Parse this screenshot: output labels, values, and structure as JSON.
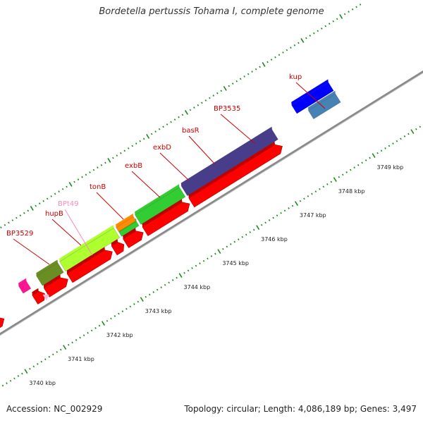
{
  "title": "Bordetella pertussis Tohama I, complete genome",
  "footer": {
    "accession": "Accession: NC_002929",
    "summary": "Topology: circular; Length: 4,086,189 bp; Genes: 3,497"
  },
  "colors": {
    "backbone": "#8a8a8a",
    "cds": "#ff0000",
    "tick": "#1a8a1a",
    "gene_label": "#cc0000",
    "trna_label": "#ff88bb"
  },
  "genes": [
    {
      "name": "BP3529",
      "color": "#4682b4",
      "start": 3738.6,
      "end": 3739.7
    },
    {
      "name": "hupB",
      "color": "#555555",
      "start": 3739.75,
      "end": 3740.2
    },
    {
      "name": "BPt49",
      "color": "#ff1493",
      "start": 3740.85,
      "end": 3741.05,
      "type": "tRNA"
    },
    {
      "name": "tonB",
      "color": "#6b8e23",
      "start": 3741.3,
      "end": 3741.85
    },
    {
      "name": "exbB",
      "color": "#adff2f",
      "start": 3741.9,
      "end": 3743.3
    },
    {
      "name": "exbD",
      "color": "#32cd32",
      "start": 3743.35,
      "end": 3743.8
    },
    {
      "name": "basR",
      "color": "#ff8c00",
      "start": 3743.35,
      "end": 3743.8
    },
    {
      "name": "BP3535",
      "color": "#32cd32",
      "start": 3743.85,
      "end": 3745.0
    },
    {
      "name": "kup",
      "color": "#483d8b",
      "start": 3745.05,
      "end": 3747.4
    },
    {
      "name": "",
      "color": "#0000ff",
      "start": 3748.05,
      "end": 3749.0
    },
    {
      "name": "",
      "color": "#4682b4",
      "start": 3748.3,
      "end": 3749.0
    }
  ],
  "cds": [
    {
      "start": 3738.6,
      "end": 3739.7
    },
    {
      "start": 3739.75,
      "end": 3740.2
    },
    {
      "start": 3741.0,
      "end": 3741.25
    },
    {
      "start": 3741.3,
      "end": 3741.85
    },
    {
      "start": 3741.9,
      "end": 3743.0
    },
    {
      "start": 3743.05,
      "end": 3743.3
    },
    {
      "start": 3743.35,
      "end": 3743.8
    },
    {
      "start": 3743.85,
      "end": 3745.0
    },
    {
      "start": 3745.05,
      "end": 3747.4
    }
  ],
  "tick_labels": [
    "3740 kbp",
    "3741 kbp",
    "3742 kbp",
    "3743 kbp",
    "3744 kbp",
    "3745 kbp",
    "3746 kbp",
    "3747 kbp",
    "3748 kbp",
    "3749 kbp"
  ]
}
